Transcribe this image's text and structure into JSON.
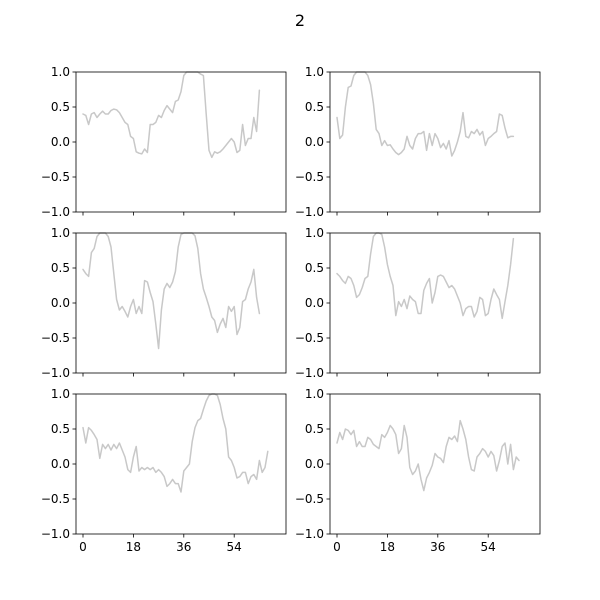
{
  "figure": {
    "suptitle": "2"
  },
  "chart_data": {
    "type": "line",
    "layout": "3x2",
    "sharex": true,
    "ylim": [
      -1.0,
      1.0
    ],
    "yticks": [
      1.0,
      0.5,
      0.0,
      -0.5,
      -1.0
    ],
    "ytick_labels": [
      "1.0",
      "0.5",
      "0.0",
      "−0.5",
      "−1.0"
    ],
    "xlim": [
      -2.5,
      72.5
    ],
    "xticks": [
      0,
      18,
      36,
      54
    ],
    "xtick_labels": [
      "0",
      "18",
      "36",
      "54"
    ],
    "line_color": "#c8c8c8",
    "panels": [
      {
        "values": [
          0.4,
          0.38,
          0.25,
          0.4,
          0.42,
          0.35,
          0.4,
          0.44,
          0.4,
          0.4,
          0.45,
          0.47,
          0.46,
          0.42,
          0.35,
          0.28,
          0.25,
          0.08,
          0.05,
          -0.14,
          -0.16,
          -0.17,
          -0.1,
          -0.15,
          0.25,
          0.25,
          0.28,
          0.38,
          0.35,
          0.45,
          0.52,
          0.47,
          0.42,
          0.58,
          0.6,
          0.72,
          0.95,
          1.0,
          1.0,
          1.0,
          1.0,
          1.0,
          0.97,
          0.95,
          0.4,
          -0.12,
          -0.22,
          -0.14,
          -0.16,
          -0.14,
          -0.1,
          -0.05,
          0.0,
          0.05,
          0.0,
          -0.15,
          -0.12,
          0.25,
          -0.05,
          0.05,
          0.05,
          0.35,
          0.15,
          0.74
        ]
      },
      {
        "values": [
          0.35,
          0.05,
          0.1,
          0.5,
          0.78,
          0.8,
          0.95,
          1.0,
          1.0,
          1.0,
          1.0,
          0.95,
          0.82,
          0.55,
          0.18,
          0.12,
          -0.05,
          0.02,
          -0.05,
          -0.04,
          -0.1,
          -0.15,
          -0.18,
          -0.15,
          -0.1,
          0.08,
          -0.05,
          -0.1,
          0.05,
          0.12,
          0.12,
          0.15,
          -0.12,
          0.12,
          -0.05,
          0.12,
          0.05,
          -0.08,
          -0.02,
          -0.1,
          0.02,
          -0.2,
          -0.12,
          0.0,
          0.15,
          0.42,
          0.08,
          0.06,
          0.15,
          0.12,
          0.18,
          0.1,
          0.15,
          -0.05,
          0.05,
          0.08,
          0.12,
          0.15,
          0.4,
          0.38,
          0.2,
          0.06,
          0.08,
          0.08
        ]
      },
      {
        "values": [
          0.48,
          0.42,
          0.38,
          0.72,
          0.78,
          0.95,
          1.0,
          1.0,
          1.0,
          0.95,
          0.8,
          0.42,
          0.05,
          -0.1,
          -0.05,
          -0.12,
          -0.2,
          -0.05,
          0.05,
          -0.15,
          -0.05,
          -0.15,
          0.32,
          0.3,
          0.15,
          0.02,
          -0.3,
          -0.65,
          -0.1,
          0.2,
          0.28,
          0.22,
          0.3,
          0.45,
          0.8,
          0.98,
          1.0,
          1.0,
          1.0,
          1.0,
          0.96,
          0.78,
          0.42,
          0.2,
          0.08,
          -0.05,
          -0.2,
          -0.25,
          -0.42,
          -0.3,
          -0.22,
          -0.35,
          -0.05,
          -0.12,
          -0.05,
          -0.45,
          -0.35,
          0.02,
          0.05,
          0.2,
          0.3,
          0.48,
          0.08,
          -0.15
        ]
      },
      {
        "values": [
          0.42,
          0.38,
          0.32,
          0.28,
          0.38,
          0.35,
          0.25,
          0.08,
          0.12,
          0.22,
          0.35,
          0.38,
          0.7,
          0.95,
          1.0,
          1.0,
          0.98,
          0.8,
          0.55,
          0.38,
          0.25,
          -0.18,
          0.02,
          -0.05,
          0.05,
          -0.08,
          0.1,
          0.05,
          0.02,
          -0.15,
          -0.15,
          0.18,
          0.28,
          0.35,
          0.0,
          0.15,
          0.38,
          0.4,
          0.38,
          0.3,
          0.22,
          0.25,
          0.2,
          0.1,
          0.0,
          -0.18,
          -0.08,
          -0.05,
          -0.05,
          -0.2,
          -0.12,
          0.08,
          0.05,
          -0.18,
          -0.15,
          0.05,
          0.2,
          0.12,
          0.05,
          -0.22,
          0.02,
          0.25,
          0.55,
          0.92
        ]
      },
      {
        "values": [
          0.52,
          0.3,
          0.52,
          0.48,
          0.42,
          0.35,
          0.08,
          0.28,
          0.22,
          0.28,
          0.2,
          0.28,
          0.22,
          0.3,
          0.2,
          0.1,
          -0.08,
          -0.12,
          0.1,
          0.25,
          -0.1,
          -0.05,
          -0.08,
          -0.05,
          -0.08,
          -0.05,
          -0.12,
          -0.08,
          -0.12,
          -0.18,
          -0.32,
          -0.28,
          -0.22,
          -0.28,
          -0.28,
          -0.4,
          -0.1,
          -0.05,
          0.0,
          0.32,
          0.52,
          0.62,
          0.65,
          0.78,
          0.9,
          0.98,
          1.0,
          1.0,
          0.98,
          0.85,
          0.65,
          0.5,
          0.1,
          0.05,
          -0.05,
          -0.2,
          -0.18,
          -0.12,
          -0.12,
          -0.28,
          -0.18,
          -0.15,
          -0.22,
          0.05,
          -0.12,
          -0.05,
          0.18
        ]
      },
      {
        "values": [
          0.3,
          0.45,
          0.35,
          0.5,
          0.48,
          0.42,
          0.48,
          0.25,
          0.32,
          0.25,
          0.25,
          0.38,
          0.35,
          0.28,
          0.25,
          0.22,
          0.42,
          0.38,
          0.45,
          0.55,
          0.5,
          0.42,
          0.15,
          0.22,
          0.55,
          0.38,
          -0.05,
          -0.15,
          -0.1,
          0.0,
          -0.22,
          -0.38,
          -0.2,
          -0.12,
          -0.02,
          0.15,
          0.1,
          0.08,
          0.02,
          0.25,
          0.38,
          0.35,
          0.4,
          0.32,
          0.62,
          0.5,
          0.35,
          0.1,
          -0.08,
          -0.1,
          0.1,
          0.15,
          0.22,
          0.18,
          0.1,
          0.18,
          0.12,
          -0.1,
          0.05,
          0.25,
          0.3,
          0.0,
          0.28,
          -0.08,
          0.1,
          0.05
        ]
      }
    ]
  }
}
